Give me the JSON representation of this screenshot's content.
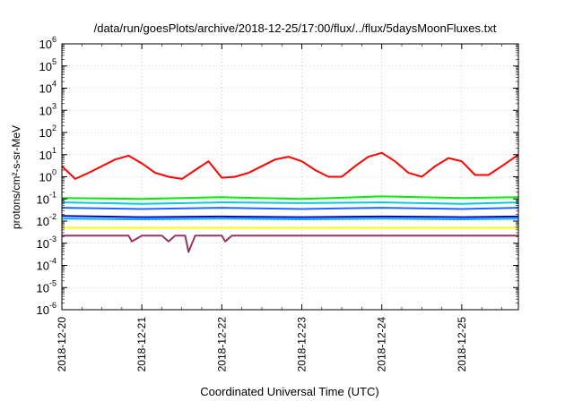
{
  "chart_data": {
    "type": "line",
    "title": "/data/run/goesPlots/archive/2018-12-25/17:00/flux/../flux/5daysMoonFluxes.txt",
    "xlabel": "Coordinated Universal Time (UTC)",
    "ylabel": "protons/cm²-s-sr-MeV",
    "y_scale": "log",
    "ylim": [
      1e-06,
      1000000.0
    ],
    "xlim": [
      "2018-12-20T00:00",
      "2018-12-25T17:00"
    ],
    "x_ticks": [
      "2018-12-20",
      "2018-12-21",
      "2018-12-22",
      "2018-12-23",
      "2018-12-24",
      "2018-12-25"
    ],
    "y_ticks": [
      {
        "base": "10",
        "exp": "6",
        "value": 1000000.0
      },
      {
        "base": "10",
        "exp": "5",
        "value": 100000.0
      },
      {
        "base": "10",
        "exp": "4",
        "value": 10000.0
      },
      {
        "base": "10",
        "exp": "3",
        "value": 1000.0
      },
      {
        "base": "10",
        "exp": "2",
        "value": 100.0
      },
      {
        "base": "10",
        "exp": "1",
        "value": 10.0
      },
      {
        "base": "10",
        "exp": "0",
        "value": 1
      },
      {
        "base": "10",
        "exp": "-1",
        "value": 0.1
      },
      {
        "base": "10",
        "exp": "-2",
        "value": 0.01
      },
      {
        "base": "10",
        "exp": "-3",
        "value": 0.001
      },
      {
        "base": "10",
        "exp": "-4",
        "value": 0.0001
      },
      {
        "base": "10",
        "exp": "-5",
        "value": 1e-05
      },
      {
        "base": "10",
        "exp": "-6",
        "value": 1e-06
      }
    ],
    "grid": true,
    "legend": "none",
    "series": [
      {
        "color": "#ff0000",
        "x": [
          "2018-12-20T00:00",
          "2018-12-20T04:00",
          "2018-12-20T08:00",
          "2018-12-20T12:00",
          "2018-12-20T16:00",
          "2018-12-20T20:00",
          "2018-12-21T00:00",
          "2018-12-21T04:00",
          "2018-12-21T08:00",
          "2018-12-21T12:00",
          "2018-12-21T16:00",
          "2018-12-21T20:00",
          "2018-12-22T00:00",
          "2018-12-22T04:00",
          "2018-12-22T08:00",
          "2018-12-22T12:00",
          "2018-12-22T16:00",
          "2018-12-22T20:00",
          "2018-12-23T00:00",
          "2018-12-23T04:00",
          "2018-12-23T08:00",
          "2018-12-23T12:00",
          "2018-12-23T16:00",
          "2018-12-23T20:00",
          "2018-12-24T00:00",
          "2018-12-24T04:00",
          "2018-12-24T08:00",
          "2018-12-24T12:00",
          "2018-12-24T16:00",
          "2018-12-24T20:00",
          "2018-12-25T00:00",
          "2018-12-25T04:00",
          "2018-12-25T08:00",
          "2018-12-25T12:00",
          "2018-12-25T17:00"
        ],
        "y": [
          3,
          0.8,
          1.5,
          3,
          6,
          9,
          4,
          1.5,
          1,
          0.8,
          2,
          5,
          0.9,
          1,
          1.5,
          3,
          6,
          8,
          5,
          2,
          1,
          1,
          3,
          8,
          12,
          5,
          1.5,
          1,
          3,
          7,
          5,
          1.2,
          1.2,
          3,
          10
        ]
      },
      {
        "color": "#00ee00",
        "x": [
          "2018-12-20T00:00",
          "2018-12-21T00:00",
          "2018-12-22T00:00",
          "2018-12-23T00:00",
          "2018-12-24T00:00",
          "2018-12-25T00:00",
          "2018-12-25T17:00"
        ],
        "y": [
          0.11,
          0.1,
          0.12,
          0.1,
          0.13,
          0.11,
          0.12
        ]
      },
      {
        "color": "#00ccdd",
        "x": [
          "2018-12-20T00:00",
          "2018-12-21T00:00",
          "2018-12-22T00:00",
          "2018-12-23T00:00",
          "2018-12-24T00:00",
          "2018-12-25T00:00",
          "2018-12-25T17:00"
        ],
        "y": [
          0.07,
          0.06,
          0.07,
          0.065,
          0.07,
          0.06,
          0.07
        ]
      },
      {
        "color": "#2266ff",
        "x": [
          "2018-12-20T00:00",
          "2018-12-21T00:00",
          "2018-12-22T00:00",
          "2018-12-23T00:00",
          "2018-12-24T00:00",
          "2018-12-25T00:00",
          "2018-12-25T17:00"
        ],
        "y": [
          0.04,
          0.035,
          0.04,
          0.035,
          0.04,
          0.035,
          0.04
        ]
      },
      {
        "color": "#0000cc",
        "x": [
          "2018-12-20T00:00",
          "2018-12-21T00:00",
          "2018-12-22T00:00",
          "2018-12-23T00:00",
          "2018-12-24T00:00",
          "2018-12-25T00:00",
          "2018-12-25T17:00"
        ],
        "y": [
          0.017,
          0.015,
          0.016,
          0.015,
          0.016,
          0.015,
          0.016
        ]
      },
      {
        "color": "#00aaff",
        "x": [
          "2018-12-20T00:00",
          "2018-12-21T00:00",
          "2018-12-22T00:00",
          "2018-12-23T00:00",
          "2018-12-24T00:00",
          "2018-12-25T00:00",
          "2018-12-25T17:00"
        ],
        "y": [
          0.013,
          0.012,
          0.013,
          0.012,
          0.013,
          0.012,
          0.013
        ]
      },
      {
        "color": "#ffff00",
        "x": [
          "2018-12-20T00:00",
          "2018-12-21T00:00",
          "2018-12-22T00:00",
          "2018-12-23T00:00",
          "2018-12-24T00:00",
          "2018-12-25T00:00",
          "2018-12-25T17:00"
        ],
        "y": [
          0.005,
          0.005,
          0.005,
          0.005,
          0.005,
          0.005,
          0.005
        ]
      },
      {
        "color": "#993366",
        "x": [
          "2018-12-20T00:00",
          "2018-12-20T20:00",
          "2018-12-20T21:00",
          "2018-12-21T00:00",
          "2018-12-21T06:00",
          "2018-12-21T08:00",
          "2018-12-21T10:00",
          "2018-12-21T13:00",
          "2018-12-21T14:00",
          "2018-12-21T16:00",
          "2018-12-22T00:00",
          "2018-12-22T01:00",
          "2018-12-22T03:00",
          "2018-12-23T00:00",
          "2018-12-24T00:00",
          "2018-12-25T00:00",
          "2018-12-25T17:00"
        ],
        "y": [
          0.0022,
          0.0022,
          0.0012,
          0.0022,
          0.0022,
          0.0012,
          0.0022,
          0.0022,
          0.0004,
          0.0022,
          0.0022,
          0.0012,
          0.0022,
          0.0022,
          0.0022,
          0.0022,
          0.0022
        ]
      }
    ]
  }
}
